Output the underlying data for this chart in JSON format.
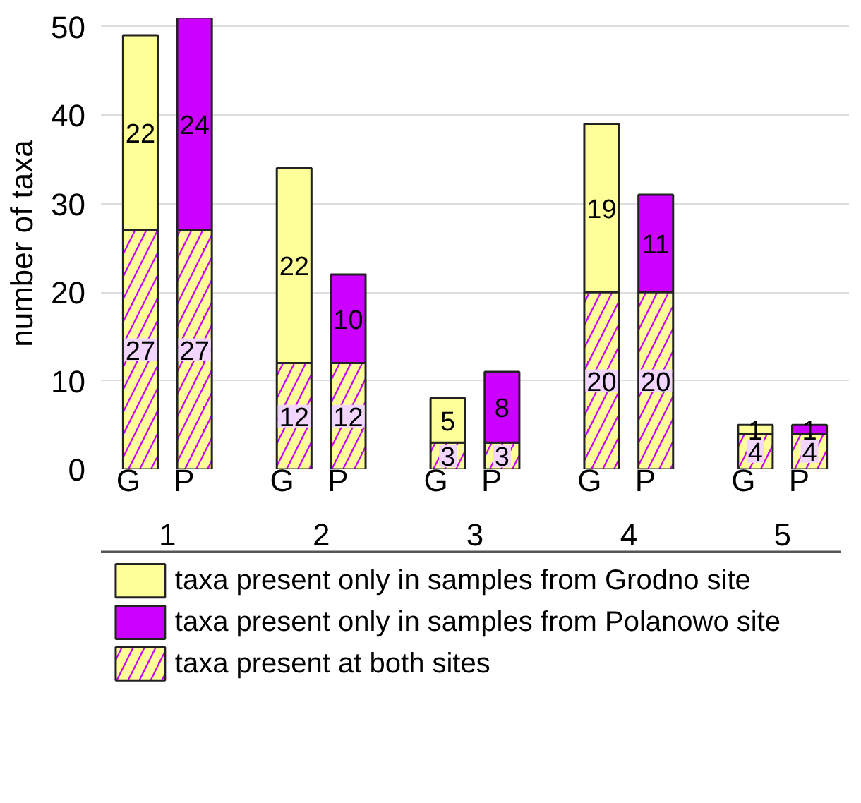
{
  "chart_data": {
    "type": "bar",
    "stacked": true,
    "ylabel": "number of taxa",
    "categories": [
      "G",
      "P",
      "G",
      "P",
      "G",
      "P",
      "G",
      "P",
      "G",
      "P"
    ],
    "annotations": [
      "1",
      "2",
      "3",
      "4",
      "5"
    ],
    "series": [
      {
        "name": "taxa present at both sites",
        "color": "#cc00ff",
        "values": [
          27,
          27,
          12,
          12,
          3,
          3,
          20,
          20,
          4,
          4
        ]
      },
      {
        "name": "taxa present only in samples from Grodno site",
        "color": "#ffff99",
        "values": [
          22,
          null,
          22,
          null,
          5,
          null,
          19,
          null,
          1,
          null
        ]
      },
      {
        "name": "taxa present only in samples from Polanowo site",
        "color": "#cc00ff",
        "values": [
          null,
          24,
          null,
          10,
          null,
          8,
          null,
          11,
          null,
          1
        ]
      }
    ],
    "ylim": [
      0,
      51
    ],
    "yticks": [
      0,
      10,
      20,
      30,
      40,
      50
    ],
    "grid": "y",
    "data_labels": true,
    "legend": "bottom"
  }
}
